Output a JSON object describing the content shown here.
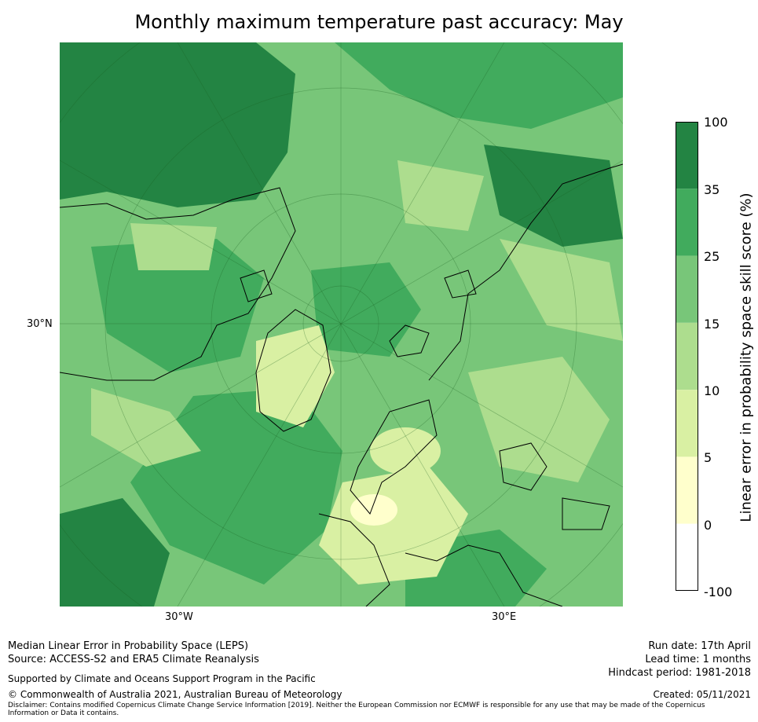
{
  "title": "Monthly maximum temperature past accuracy: May",
  "map": {
    "latitude_labels": [
      "30°N"
    ],
    "longitude_labels": [
      "30°W",
      "30°E"
    ],
    "colors": [
      "#ffffff",
      "#ffffcc",
      "#d9f0a3",
      "#addd8e",
      "#78c679",
      "#41ab5d",
      "#238443"
    ],
    "coastline_color": "#000000"
  },
  "colorbar": {
    "label": "Linear error in probability space skill score (%)",
    "ticks": [
      "100",
      "35",
      "25",
      "15",
      "10",
      "5",
      "0",
      "-100"
    ],
    "bins": [
      {
        "range": "35–100",
        "color": "#238443"
      },
      {
        "range": "25–35",
        "color": "#41ab5d"
      },
      {
        "range": "15–25",
        "color": "#78c679"
      },
      {
        "range": "10–15",
        "color": "#addd8e"
      },
      {
        "range": "5–10",
        "color": "#d9f0a3"
      },
      {
        "range": "0–5",
        "color": "#ffffcc"
      },
      {
        "range": "-100–0",
        "color": "#ffffff"
      }
    ]
  },
  "footer": {
    "method": "Median Linear Error in Probability Space (LEPS)",
    "source": "Source: ACCESS-S2 and ERA5 Climate Reanalysis",
    "support": "Supported by Climate and Oceans Support Program in the Pacific",
    "copyright": "© Commonwealth of Australia 2021, Australian Bureau of Meteorology",
    "disclaimer": "Disclaimer: Contains modified Copernicus Climate Change Service Information [2019]. Neither the European Commission nor ECMWF is responsible for any use that may be made of the Copernicus Information or Data it contains.",
    "run_date": "Run date: 17th April",
    "lead_time": "Lead time: 1 months",
    "hindcast": "Hindcast period: 1981-2018",
    "created": "Created: 05/11/2021"
  }
}
